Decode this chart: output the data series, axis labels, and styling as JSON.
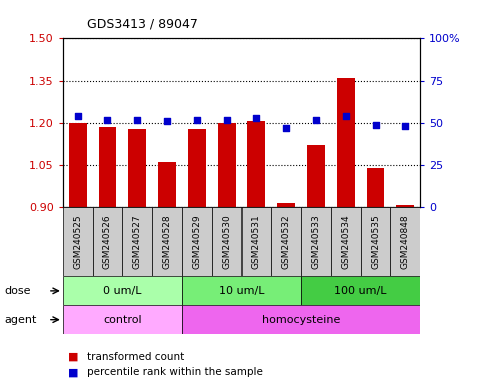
{
  "title": "GDS3413 / 89047",
  "samples": [
    "GSM240525",
    "GSM240526",
    "GSM240527",
    "GSM240528",
    "GSM240529",
    "GSM240530",
    "GSM240531",
    "GSM240532",
    "GSM240533",
    "GSM240534",
    "GSM240535",
    "GSM240848"
  ],
  "transformed_count": [
    1.2,
    1.185,
    1.18,
    1.06,
    1.18,
    1.2,
    1.205,
    0.915,
    1.12,
    1.36,
    1.04,
    0.91
  ],
  "percentile_rank": [
    54,
    52,
    52,
    51,
    52,
    52,
    53,
    47,
    52,
    54,
    49,
    48
  ],
  "ylim_left": [
    0.9,
    1.5
  ],
  "ylim_right": [
    0,
    100
  ],
  "yticks_left": [
    0.9,
    1.05,
    1.2,
    1.35,
    1.5
  ],
  "yticks_right": [
    0,
    25,
    50,
    75,
    100
  ],
  "ytick_labels_right": [
    "0",
    "25",
    "50",
    "75",
    "100%"
  ],
  "bar_color": "#cc0000",
  "dot_color": "#0000cc",
  "dose_groups": [
    {
      "label": "0 um/L",
      "start": 0,
      "end": 4,
      "color": "#aaffaa"
    },
    {
      "label": "10 um/L",
      "start": 4,
      "end": 8,
      "color": "#77ee77"
    },
    {
      "label": "100 um/L",
      "start": 8,
      "end": 12,
      "color": "#44cc44"
    }
  ],
  "agent_groups": [
    {
      "label": "control",
      "start": 0,
      "end": 4,
      "color": "#ffaaff"
    },
    {
      "label": "homocysteine",
      "start": 4,
      "end": 12,
      "color": "#ee66ee"
    }
  ],
  "dose_label": "dose",
  "agent_label": "agent",
  "legend_red": "transformed count",
  "legend_blue": "percentile rank within the sample",
  "tick_color_left": "#cc0000",
  "tick_color_right": "#0000cc",
  "bar_width": 0.6,
  "sample_bg_color": "#cccccc"
}
